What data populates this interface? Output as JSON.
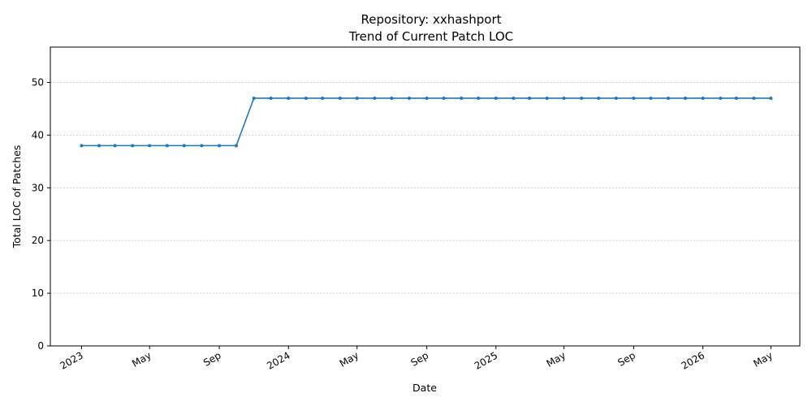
{
  "chart_data": {
    "type": "line",
    "title": "Repository: xxhashport",
    "subtitle": "Trend of Current Patch LOC",
    "xlabel": "Date",
    "ylabel": "Total LOC of Patches",
    "ylim": [
      0,
      56.7
    ],
    "yticks": [
      0,
      10,
      20,
      30,
      40,
      50
    ],
    "xlim": [
      "2022-11-07",
      "2026-06-21"
    ],
    "xticks": [
      {
        "date": "2023-01-01",
        "label": "2023"
      },
      {
        "date": "2023-05-01",
        "label": "May"
      },
      {
        "date": "2023-09-01",
        "label": "Sep"
      },
      {
        "date": "2024-01-01",
        "label": "2024"
      },
      {
        "date": "2024-05-01",
        "label": "May"
      },
      {
        "date": "2024-09-01",
        "label": "Sep"
      },
      {
        "date": "2025-01-01",
        "label": "2025"
      },
      {
        "date": "2025-05-01",
        "label": "May"
      },
      {
        "date": "2025-09-01",
        "label": "Sep"
      },
      {
        "date": "2026-01-01",
        "label": "2026"
      },
      {
        "date": "2026-05-01",
        "label": "May"
      }
    ],
    "grid": "horizontal-dashed",
    "line_color": "#1f77b4",
    "x": [
      "2023-01-01",
      "2023-02-01",
      "2023-03-01",
      "2023-04-01",
      "2023-05-01",
      "2023-06-01",
      "2023-07-01",
      "2023-08-01",
      "2023-09-01",
      "2023-10-01",
      "2023-11-01",
      "2023-12-01",
      "2024-01-01",
      "2024-02-01",
      "2024-03-01",
      "2024-04-01",
      "2024-05-01",
      "2024-06-01",
      "2024-07-01",
      "2024-08-01",
      "2024-09-01",
      "2024-10-01",
      "2024-11-01",
      "2024-12-01",
      "2025-01-01",
      "2025-02-01",
      "2025-03-01",
      "2025-04-01",
      "2025-05-01",
      "2025-06-01",
      "2025-07-01",
      "2025-08-01",
      "2025-09-01",
      "2025-10-01",
      "2025-11-01",
      "2025-12-01",
      "2026-01-01",
      "2026-02-01",
      "2026-03-01",
      "2026-04-01",
      "2026-05-01"
    ],
    "values": [
      38,
      38,
      38,
      38,
      38,
      38,
      38,
      38,
      38,
      38,
      47,
      47,
      47,
      47,
      47,
      47,
      47,
      47,
      47,
      47,
      47,
      47,
      47,
      47,
      47,
      47,
      47,
      47,
      47,
      47,
      47,
      47,
      47,
      47,
      47,
      47,
      47,
      47,
      47,
      47,
      47
    ]
  }
}
